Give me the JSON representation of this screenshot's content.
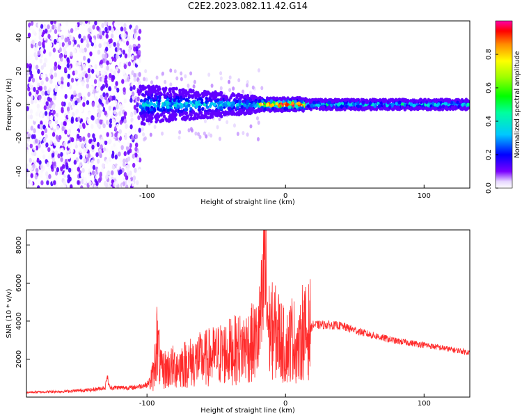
{
  "title": "C2E2.2023.082.11.42.G14",
  "colors": {
    "snr_line": "#ff2a2a",
    "noise_dark": "#6a00ff",
    "noise_light": "#c9a8ff",
    "axis": "#000000",
    "background": "#ffffff"
  },
  "chart_data": [
    {
      "type": "heatmap",
      "title": "C2E2.2023.082.11.42.G14",
      "xlabel": "Height of straight line (km)",
      "ylabel": "Frequency (Hz)",
      "xlim": [
        -187,
        133
      ],
      "ylim": [
        -50,
        50
      ],
      "xticks": [
        -100,
        0,
        100
      ],
      "yticks": [
        -40,
        -20,
        0,
        20,
        40
      ],
      "grid": false,
      "colorbar": {
        "label": "Normalized spectral amplitude",
        "range": [
          0,
          1
        ],
        "ticks": [
          "0.0",
          "0.2",
          "0.4",
          "0.6",
          "0.8"
        ],
        "colormap": "rainbow"
      },
      "regions": [
        {
          "x": [
            -187,
            -105
          ],
          "description": "broadband noise",
          "freq_extent": [
            -50,
            50
          ],
          "amplitude": [
            0.0,
            0.15
          ]
        },
        {
          "x": [
            -105,
            -20
          ],
          "description": "signal band",
          "center_hz": 0,
          "halfwidth_hz": [
            12,
            5
          ],
          "peak_amplitude": 0.45
        },
        {
          "x": [
            -20,
            15
          ],
          "description": "strong signal",
          "center_hz": 0,
          "halfwidth_hz": 4,
          "peak_amplitude": 1.0
        },
        {
          "x": [
            15,
            133
          ],
          "description": "steady signal",
          "center_hz": 0,
          "halfwidth_hz": 3,
          "peak_amplitude": 0.5
        }
      ]
    },
    {
      "type": "line",
      "xlabel": "Height of straight line (km)",
      "ylabel": "SNR (10 * v/v)",
      "xlim": [
        -187,
        133
      ],
      "ylim": [
        0,
        8800
      ],
      "xticks": [
        -100,
        0,
        100
      ],
      "yticks": [
        2000,
        4000,
        6000,
        8000
      ],
      "grid": false,
      "series": [
        {
          "x": [
            -187,
            -160,
            -140,
            -130,
            -129,
            -127,
            -110,
            -100,
            -95,
            -93,
            -90,
            -80,
            -70,
            -60,
            -50,
            -40,
            -30,
            -20,
            -16,
            -15,
            -14,
            -12,
            -10,
            -5,
            0,
            5,
            10,
            12,
            15,
            20,
            30,
            40,
            60,
            80,
            100,
            120,
            133
          ],
          "y": [
            250,
            300,
            380,
            500,
            1150,
            500,
            500,
            650,
            1200,
            3100,
            1400,
            1600,
            1800,
            2000,
            2200,
            2400,
            2600,
            3000,
            5000,
            8800,
            5200,
            3600,
            3500,
            3300,
            2500,
            3200,
            2400,
            3600,
            3300,
            3800,
            3800,
            3750,
            3300,
            2950,
            2750,
            2500,
            2350
          ]
        }
      ]
    }
  ]
}
